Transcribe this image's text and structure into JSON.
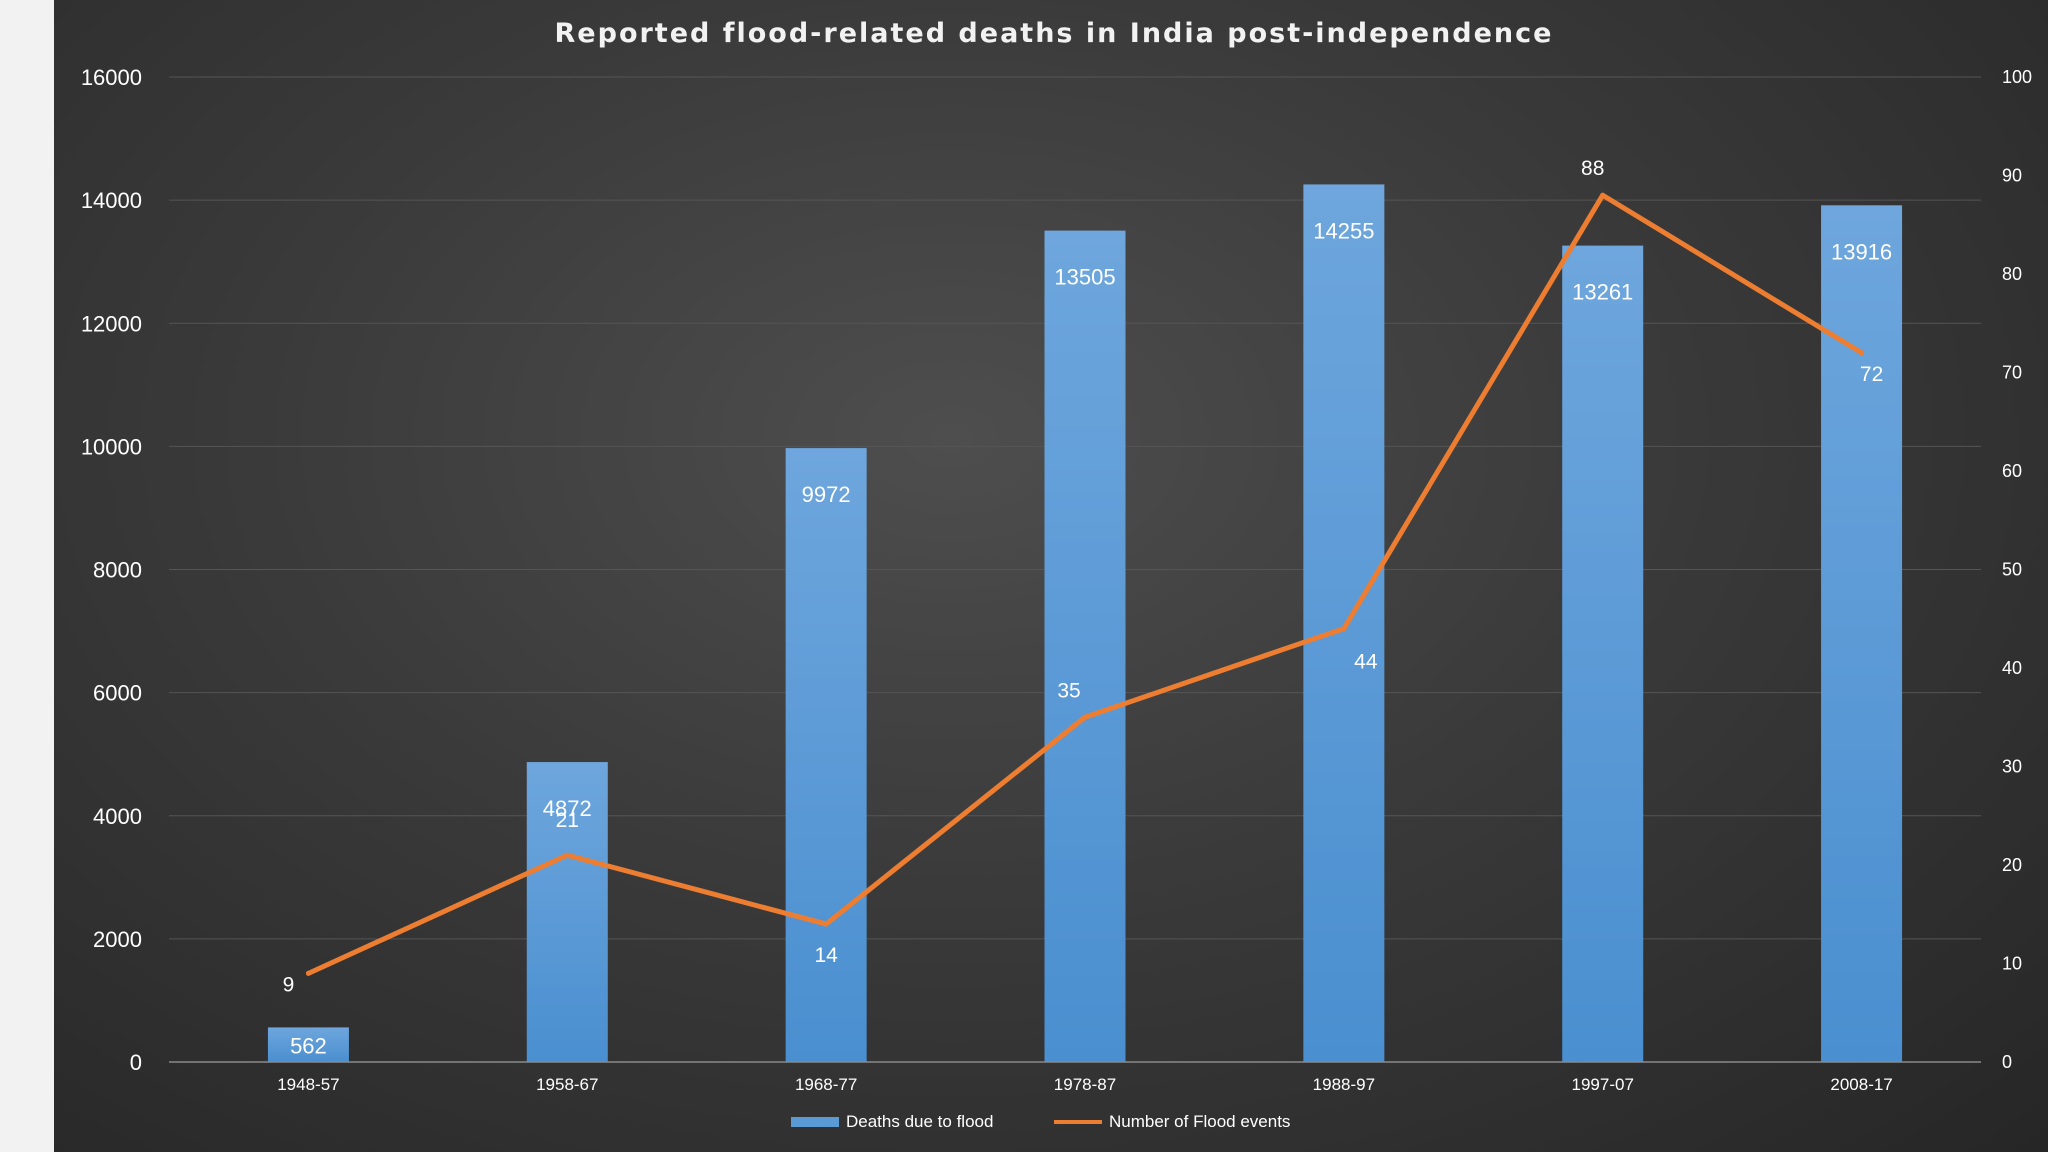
{
  "chart_data": {
    "type": "bar",
    "title": "Reported flood-related deaths in India post-independence",
    "categories": [
      "1948-57",
      "1958-67",
      "1968-77",
      "1978-87",
      "1988-97",
      "1997-07",
      "2008-17"
    ],
    "series": [
      {
        "name": "Deaths due to flood",
        "type": "bar",
        "axis": "left",
        "values": [
          562,
          4872,
          9972,
          13505,
          14255,
          13261,
          13916
        ],
        "color": "#5b9bd5"
      },
      {
        "name": "Number of Flood events",
        "type": "line",
        "axis": "right",
        "values": [
          9,
          21,
          14,
          35,
          44,
          88,
          72
        ],
        "color": "#ed7d31"
      }
    ],
    "y_left": {
      "range": [
        0,
        16000
      ],
      "ticks": [
        0,
        2000,
        4000,
        6000,
        8000,
        10000,
        12000,
        14000,
        16000
      ]
    },
    "y_right": {
      "range": [
        0,
        100
      ],
      "ticks": [
        0,
        10,
        20,
        30,
        40,
        50,
        60,
        70,
        80,
        90,
        100
      ]
    },
    "grid": true,
    "legend_position": "bottom"
  }
}
